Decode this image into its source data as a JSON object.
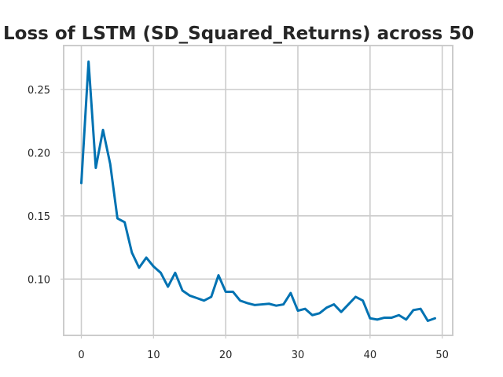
{
  "chart_data": {
    "type": "line",
    "title": "Loss of LSTM (SD_Squared_Returns) across 50",
    "xlabel": "",
    "ylabel": "",
    "xlim": [
      -2.45,
      51.45
    ],
    "ylim": [
      0.0555,
      0.2847
    ],
    "xticks": [
      0,
      10,
      20,
      30,
      40,
      50
    ],
    "xtick_labels": [
      "0",
      "10",
      "20",
      "30",
      "40",
      "50"
    ],
    "yticks": [
      0.1,
      0.15,
      0.2,
      0.25
    ],
    "ytick_labels": [
      "0.10",
      "0.15",
      "0.20",
      "0.25"
    ],
    "grid": true,
    "series": [
      {
        "color": "#0072b2",
        "x": [
          0,
          1,
          2,
          3,
          4,
          5,
          6,
          7,
          8,
          9,
          10,
          11,
          12,
          13,
          14,
          15,
          16,
          17,
          18,
          19,
          20,
          21,
          22,
          23,
          24,
          25,
          26,
          27,
          28,
          29,
          30,
          31,
          32,
          33,
          34,
          35,
          36,
          37,
          38,
          39,
          40,
          41,
          42,
          43,
          44,
          45,
          46,
          47,
          48,
          49
        ],
        "values": [
          0.176,
          0.272,
          0.188,
          0.218,
          0.191,
          0.148,
          0.145,
          0.121,
          0.109,
          0.117,
          0.11,
          0.105,
          0.094,
          0.105,
          0.091,
          0.087,
          0.085,
          0.083,
          0.086,
          0.103,
          0.09,
          0.09,
          0.083,
          0.081,
          0.0795,
          0.08,
          0.0805,
          0.079,
          0.08,
          0.089,
          0.075,
          0.0765,
          0.0715,
          0.073,
          0.0775,
          0.08,
          0.074,
          0.08,
          0.086,
          0.083,
          0.069,
          0.068,
          0.0695,
          0.0695,
          0.0715,
          0.068,
          0.0755,
          0.0765,
          0.067,
          0.069
        ]
      }
    ]
  }
}
